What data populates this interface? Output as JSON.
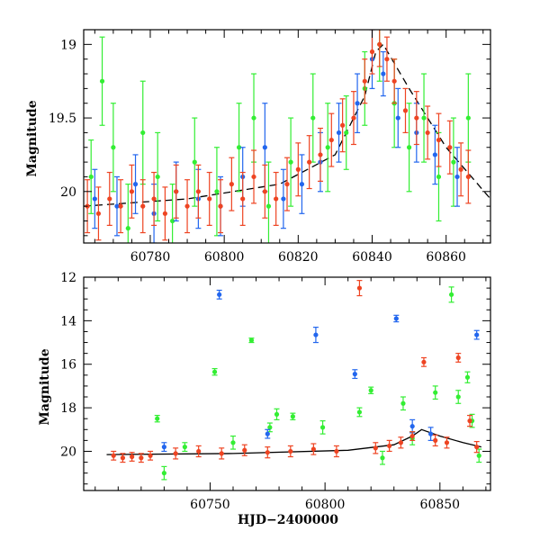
{
  "chart_data": [
    {
      "type": "scatter",
      "panel": "top",
      "title": "",
      "xlabel": "",
      "ylabel": "Magnitude",
      "xlim": [
        60762,
        60872
      ],
      "ylim": [
        20.35,
        18.9
      ],
      "y_inverted": true,
      "xticks": [
        60780,
        60800,
        60820,
        60840,
        60860
      ],
      "xticklabels": [
        "60780",
        "60800",
        "60820",
        "60840",
        "60860"
      ],
      "yticks": [
        19,
        19.5,
        20
      ],
      "yticklabels": [
        "19",
        "19.5",
        "20"
      ],
      "grid": false,
      "legend": "none",
      "model_curve": {
        "color": "#000000",
        "style": "dashed",
        "x": [
          60762,
          60790,
          60815,
          60830,
          60838,
          60841,
          60843,
          60850,
          60860,
          60872
        ],
        "y": [
          20.1,
          20.05,
          19.95,
          19.75,
          19.35,
          19.05,
          19.0,
          19.3,
          19.7,
          20.05
        ]
      },
      "series": [
        {
          "color": "#33ee33",
          "x": [
            60764,
            60767,
            60770,
            60774,
            60778,
            60782,
            60786,
            60792,
            60798,
            60804,
            60808,
            60812,
            60818,
            60824,
            60828,
            60833,
            60838,
            60842,
            60846,
            60850,
            60854,
            60858,
            60862,
            60866
          ],
          "y": [
            19.9,
            19.25,
            19.7,
            20.25,
            19.6,
            19.9,
            20.2,
            19.8,
            20.0,
            19.7,
            19.5,
            20.1,
            19.8,
            19.5,
            19.7,
            19.6,
            19.3,
            19.0,
            19.4,
            19.7,
            19.5,
            19.9,
            19.8,
            19.5
          ],
          "err": [
            0.25,
            0.3,
            0.3,
            0.3,
            0.35,
            0.3,
            0.25,
            0.3,
            0.3,
            0.3,
            0.3,
            0.3,
            0.3,
            0.3,
            0.3,
            0.25,
            0.25,
            0.25,
            0.3,
            0.3,
            0.3,
            0.3,
            0.3,
            0.3
          ]
        },
        {
          "color": "#2266ee",
          "x": [
            60765,
            60771,
            60776,
            60781,
            60787,
            60793,
            60799,
            60805,
            60811,
            60816,
            60821,
            60826,
            60831,
            60836,
            60840,
            60843,
            60847,
            60852,
            60857,
            60863
          ],
          "y": [
            20.05,
            20.1,
            19.95,
            20.15,
            20.0,
            20.05,
            20.1,
            19.9,
            19.7,
            20.05,
            19.95,
            19.8,
            19.6,
            19.4,
            19.1,
            19.2,
            19.5,
            19.6,
            19.75,
            19.9
          ],
          "err": [
            0.2,
            0.2,
            0.2,
            0.2,
            0.2,
            0.2,
            0.2,
            0.2,
            0.3,
            0.2,
            0.2,
            0.2,
            0.2,
            0.2,
            0.2,
            0.15,
            0.2,
            0.2,
            0.2,
            0.2
          ]
        },
        {
          "color": "#ee4422",
          "x": [
            60763,
            60766,
            60769,
            60772,
            60775,
            60778,
            60781,
            60784,
            60787,
            60790,
            60793,
            60796,
            60799,
            60802,
            60805,
            60808,
            60811,
            60814,
            60817,
            60820,
            60823,
            60826,
            60829,
            60832,
            60835,
            60838,
            60840,
            60842,
            60844,
            60846,
            60849,
            60852,
            60855,
            60858,
            60861,
            60864,
            60866
          ],
          "y": [
            20.1,
            20.15,
            20.05,
            20.1,
            20.0,
            20.1,
            20.05,
            20.15,
            20.0,
            20.1,
            20.0,
            20.05,
            20.1,
            19.95,
            20.05,
            19.9,
            20.0,
            20.05,
            19.95,
            19.85,
            19.8,
            19.75,
            19.65,
            19.55,
            19.5,
            19.25,
            19.05,
            19.0,
            19.1,
            19.25,
            19.45,
            19.5,
            19.6,
            19.65,
            19.7,
            19.85,
            19.9
          ],
          "err": [
            0.18,
            0.18,
            0.18,
            0.18,
            0.18,
            0.18,
            0.18,
            0.18,
            0.18,
            0.18,
            0.18,
            0.18,
            0.18,
            0.18,
            0.18,
            0.18,
            0.18,
            0.18,
            0.18,
            0.18,
            0.18,
            0.18,
            0.18,
            0.18,
            0.18,
            0.15,
            0.15,
            0.15,
            0.15,
            0.15,
            0.15,
            0.18,
            0.18,
            0.18,
            0.18,
            0.18,
            0.18
          ]
        }
      ]
    },
    {
      "type": "scatter",
      "panel": "bottom",
      "title": "",
      "xlabel": "HJD−2400000",
      "ylabel": "Magnitude",
      "xlim": [
        60695,
        60872
      ],
      "ylim": [
        21.8,
        12
      ],
      "y_inverted": true,
      "xticks": [
        60750,
        60800,
        60850
      ],
      "xticklabels": [
        "60750",
        "60800",
        "60850"
      ],
      "yticks": [
        12,
        14,
        16,
        18,
        20
      ],
      "yticklabels": [
        "12",
        "14",
        "16",
        "18",
        "20"
      ],
      "grid": false,
      "legend": "none",
      "model_curve": {
        "color": "#000000",
        "style": "solid",
        "x": [
          60705,
          60760,
          60810,
          60830,
          60838,
          60842,
          60850,
          60860,
          60868
        ],
        "y": [
          20.15,
          20.1,
          19.95,
          19.7,
          19.3,
          19.0,
          19.3,
          19.6,
          19.8
        ]
      },
      "series": [
        {
          "color": "#33ee33",
          "x": [
            60727,
            60730,
            60739,
            60752,
            60760,
            60768,
            60776,
            60779,
            60786,
            60799,
            60815,
            60820,
            60825,
            60834,
            60838,
            60848,
            60855,
            60858,
            60862,
            60864,
            60867
          ],
          "y": [
            18.5,
            21.0,
            19.8,
            16.35,
            19.6,
            14.9,
            18.9,
            18.3,
            18.4,
            18.9,
            18.2,
            17.2,
            20.3,
            17.8,
            19.4,
            17.3,
            12.8,
            17.5,
            16.6,
            18.6,
            20.2
          ],
          "err": [
            0.15,
            0.3,
            0.2,
            0.15,
            0.3,
            0.1,
            0.2,
            0.25,
            0.15,
            0.3,
            0.2,
            0.15,
            0.3,
            0.3,
            0.3,
            0.3,
            0.35,
            0.3,
            0.25,
            0.3,
            0.3
          ]
        },
        {
          "color": "#2266ee",
          "x": [
            60730,
            60754,
            60775,
            60796,
            60813,
            60831,
            60838,
            60846,
            60866
          ],
          "y": [
            19.8,
            12.8,
            19.2,
            14.65,
            16.45,
            13.9,
            18.85,
            19.2,
            14.65
          ],
          "err": [
            0.2,
            0.2,
            0.2,
            0.35,
            0.2,
            0.15,
            0.3,
            0.3,
            0.2
          ]
        },
        {
          "color": "#ee4422",
          "x": [
            60708,
            60712,
            60716,
            60720,
            60724,
            60735,
            60745,
            60755,
            60765,
            60775,
            60785,
            60795,
            60805,
            60815,
            60822,
            60828,
            60833,
            60838,
            60843,
            60848,
            60853,
            60858,
            60863,
            60866
          ],
          "y": [
            20.2,
            20.3,
            20.25,
            20.3,
            20.2,
            20.1,
            20.0,
            20.1,
            19.95,
            20.05,
            20.0,
            19.9,
            20.0,
            12.5,
            19.85,
            19.75,
            19.6,
            19.3,
            15.9,
            19.5,
            19.6,
            15.7,
            18.6,
            19.8
          ],
          "err": [
            0.2,
            0.2,
            0.2,
            0.2,
            0.2,
            0.25,
            0.25,
            0.25,
            0.25,
            0.25,
            0.25,
            0.25,
            0.25,
            0.35,
            0.25,
            0.25,
            0.25,
            0.2,
            0.2,
            0.25,
            0.25,
            0.2,
            0.25,
            0.25
          ]
        }
      ]
    }
  ]
}
